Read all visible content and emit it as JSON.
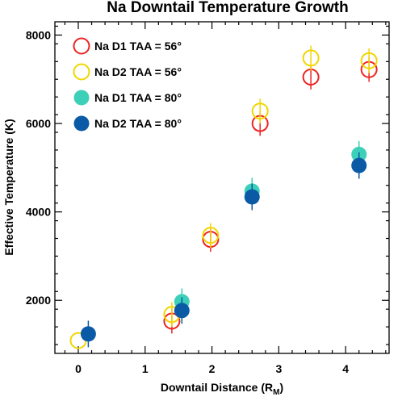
{
  "chart_data": {
    "type": "scatter",
    "title": "Na Downtail Temperature Growth",
    "xlabel": "Downtail Distance (R",
    "xlabel_sub": "M",
    "xlabel_close": ")",
    "ylabel": "Effective Temperature (K)",
    "xlim": [
      -0.35,
      4.65
    ],
    "ylim": [
      800,
      8300
    ],
    "x_ticks": [
      0,
      1,
      2,
      3,
      4
    ],
    "y_ticks": [
      2000,
      4000,
      6000,
      8000
    ],
    "legend_position": "top-left",
    "grid": false,
    "series": [
      {
        "name": "Na D1 TAA = 56°",
        "color": "#ee2222",
        "marker": "open-circle",
        "points": [
          {
            "x": 1.4,
            "y": 1530,
            "err": 280
          },
          {
            "x": 1.98,
            "y": 3380,
            "err": 280
          },
          {
            "x": 2.72,
            "y": 6000,
            "err": 280
          },
          {
            "x": 3.48,
            "y": 7050,
            "err": 280
          },
          {
            "x": 4.35,
            "y": 7220,
            "err": 280
          }
        ]
      },
      {
        "name": "Na D2 TAA = 56°",
        "color": "#f2d500",
        "marker": "open-circle",
        "points": [
          {
            "x": 0.0,
            "y": 1090,
            "err": 0
          },
          {
            "x": 1.4,
            "y": 1680,
            "err": 280
          },
          {
            "x": 1.98,
            "y": 3470,
            "err": 280
          },
          {
            "x": 2.72,
            "y": 6280,
            "err": 280
          },
          {
            "x": 3.48,
            "y": 7480,
            "err": 280
          },
          {
            "x": 4.35,
            "y": 7420,
            "err": 280
          }
        ]
      },
      {
        "name": "Na D1 TAA = 80°",
        "color": "#3dd0b8",
        "marker": "filled-circle",
        "points": [
          {
            "x": 1.55,
            "y": 1970,
            "err": 300
          },
          {
            "x": 2.6,
            "y": 4470,
            "err": 300
          },
          {
            "x": 4.2,
            "y": 5300,
            "err": 300
          }
        ]
      },
      {
        "name": "Na D2 TAA = 80°",
        "color": "#0a5aa6",
        "marker": "filled-circle",
        "points": [
          {
            "x": 0.15,
            "y": 1240,
            "err": 300
          },
          {
            "x": 1.55,
            "y": 1770,
            "err": 300
          },
          {
            "x": 2.6,
            "y": 4340,
            "err": 300
          },
          {
            "x": 4.2,
            "y": 5050,
            "err": 300
          }
        ]
      }
    ]
  }
}
